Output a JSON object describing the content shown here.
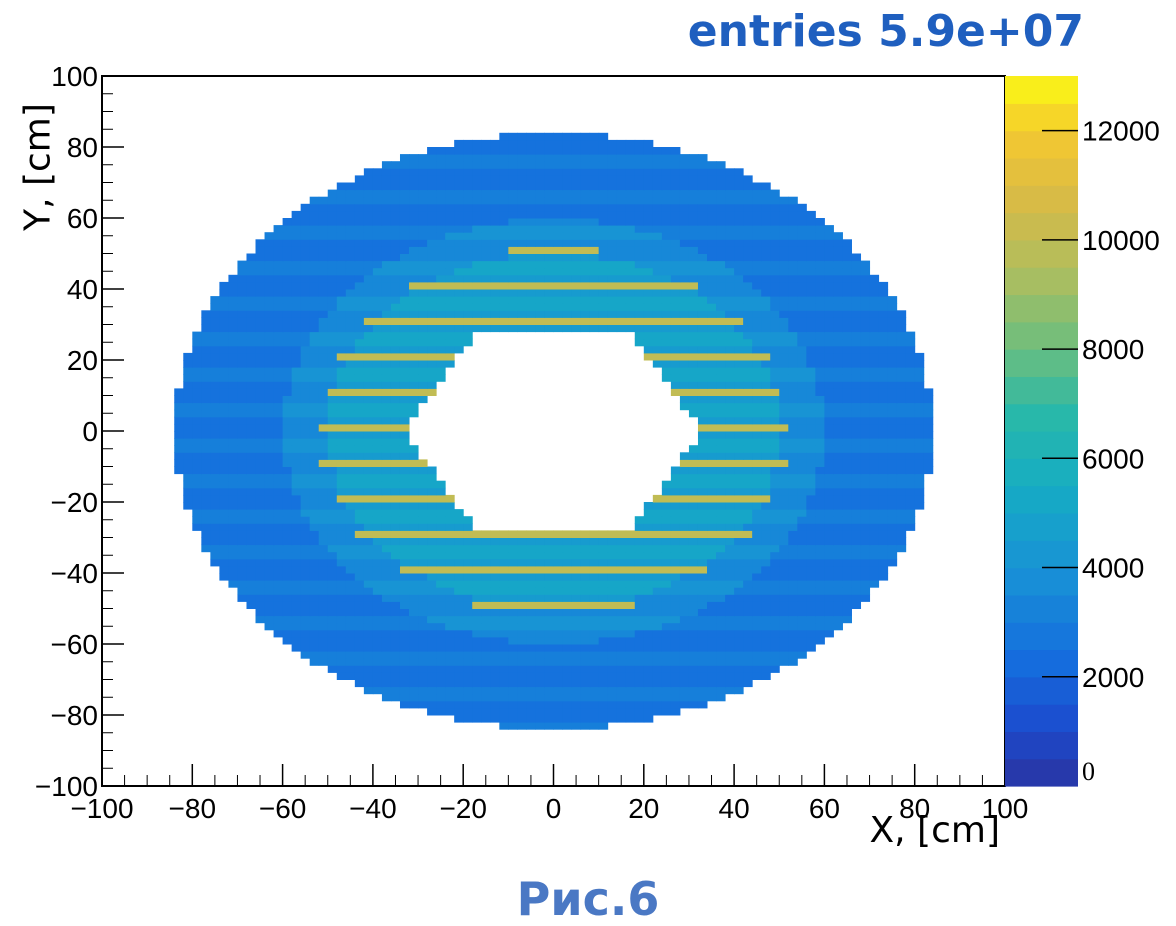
{
  "header": {
    "entries_label": "entries 5.9e+07"
  },
  "caption": "Рис.6",
  "chart_data": {
    "type": "heatmap",
    "title": "entries 5.9e+07",
    "xlabel": "X, [cm]",
    "ylabel": "Y, [cm]",
    "xlim": [
      -100,
      100
    ],
    "ylim": [
      -100,
      100
    ],
    "x_ticks": [
      "−100",
      "−80",
      "−60",
      "−40",
      "−20",
      "0",
      "20",
      "40",
      "60",
      "80",
      "100"
    ],
    "y_ticks": [
      "100",
      "80",
      "60",
      "40",
      "20",
      "0",
      "−20",
      "−40",
      "−60",
      "−80",
      "−100"
    ],
    "z_range": [
      0,
      13000
    ],
    "colorbar_ticks": [
      "0",
      "2000",
      "4000",
      "6000",
      "8000",
      "10000",
      "12000"
    ],
    "entries": 59000000,
    "shape": {
      "outer_ellipse": {
        "center": [
          0,
          0
        ],
        "semi_axis_x": 84,
        "semi_axis_y": 84
      },
      "inner_hexagon_hole": {
        "vertices": [
          [
            -33,
            0
          ],
          [
            -17,
            28
          ],
          [
            17,
            28
          ],
          [
            33,
            0
          ],
          [
            17,
            -28
          ],
          [
            -17,
            -28
          ]
        ]
      }
    },
    "typical_values": {
      "background": 2500,
      "inner_ring": 4500,
      "stripes": 10000
    },
    "colors": {
      "title": "#1f5fbf",
      "caption": "#4a78c4"
    }
  }
}
